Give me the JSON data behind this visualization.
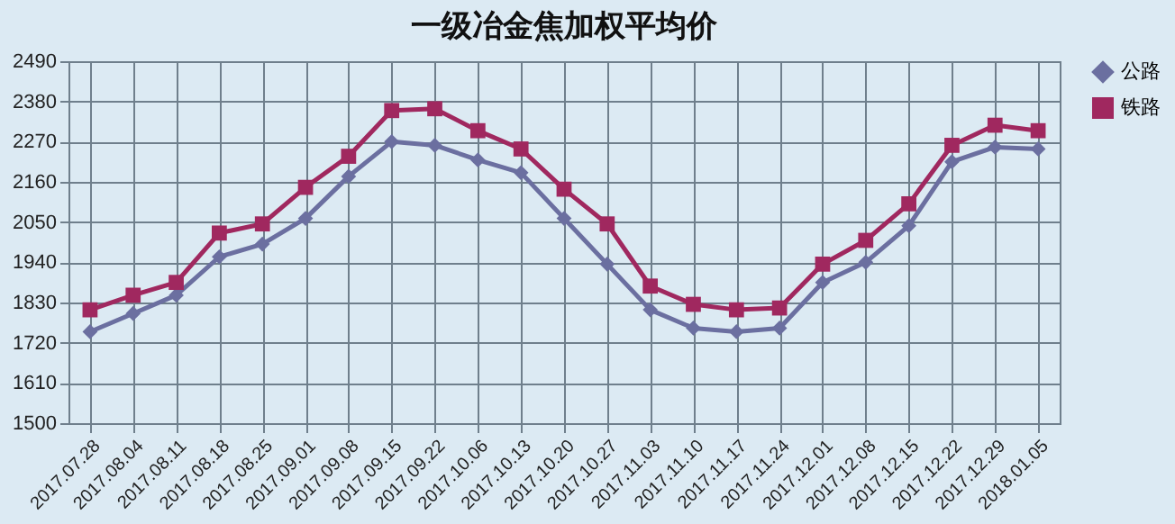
{
  "chart_data": {
    "type": "line",
    "title": "一级冶金焦加权平均价",
    "categories": [
      "2017.07.28",
      "2017.08.04",
      "2017.08.11",
      "2017.08.18",
      "2017.08.25",
      "2017.09.01",
      "2017.09.08",
      "2017.09.15",
      "2017.09.22",
      "2017.10.06",
      "2017.10.13",
      "2017.10.20",
      "2017.10.27",
      "2017.11.03",
      "2017.11.10",
      "2017.11.17",
      "2017.11.24",
      "2017.12.01",
      "2017.12.08",
      "2017.12.15",
      "2017.12.22",
      "2017.12.29",
      "2018.01.05"
    ],
    "series": [
      {
        "name": "公路",
        "color": "#6b6fa0",
        "marker": "diamond",
        "values": [
          1750,
          1800,
          1850,
          1955,
          1990,
          2060,
          2175,
          2270,
          2260,
          2220,
          2185,
          2060,
          1935,
          1810,
          1760,
          1750,
          1760,
          1885,
          1940,
          2040,
          2215,
          2255,
          2250
        ]
      },
      {
        "name": "铁路",
        "color": "#a0285f",
        "marker": "square",
        "values": [
          1810,
          1850,
          1885,
          2020,
          2045,
          2145,
          2230,
          2355,
          2360,
          2300,
          2250,
          2140,
          2045,
          1875,
          1825,
          1810,
          1815,
          1935,
          2000,
          2100,
          2260,
          2315,
          2300
        ]
      }
    ],
    "ylim": [
      1500,
      2490
    ],
    "yticks": [
      1500,
      1610,
      1720,
      1830,
      1940,
      2050,
      2160,
      2270,
      2380,
      2490
    ],
    "grid": true,
    "legend": "right"
  }
}
